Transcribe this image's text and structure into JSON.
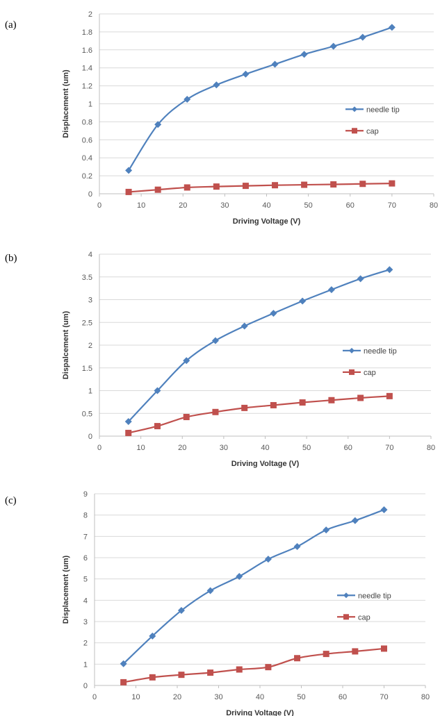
{
  "chart_data": [
    {
      "panel_label": "(a)",
      "type": "line",
      "title": "",
      "xlabel": "Driving Voltage (V)",
      "ylabel": "Displacement (um)",
      "xlim": [
        0,
        80
      ],
      "xticks": [
        0,
        10,
        20,
        30,
        40,
        50,
        60,
        70,
        80
      ],
      "ylim": [
        0,
        2
      ],
      "yticks": [
        0,
        0.2,
        0.4,
        0.6,
        0.8,
        1,
        1.2,
        1.4,
        1.6,
        1.8,
        2
      ],
      "ytick_labels": [
        "0",
        "0.2",
        "0.4",
        "0.6",
        "0.8",
        "1",
        "1.2",
        "1.4",
        "1.6",
        "1.8",
        "2"
      ],
      "grid": "horizontal",
      "legend_position": "right",
      "x": [
        7,
        14,
        21,
        28,
        35,
        42,
        49,
        56,
        63,
        70
      ],
      "series": [
        {
          "name": "needle tip",
          "color": "#4f81bd",
          "marker": "diamond",
          "values": [
            0.26,
            0.77,
            1.05,
            1.21,
            1.33,
            1.44,
            1.55,
            1.64,
            1.74,
            1.85
          ]
        },
        {
          "name": "cap",
          "color": "#c0504d",
          "marker": "square",
          "values": [
            0.02,
            0.045,
            0.07,
            0.08,
            0.088,
            0.095,
            0.1,
            0.104,
            0.11,
            0.115
          ]
        }
      ]
    },
    {
      "panel_label": "(b)",
      "type": "line",
      "title": "",
      "xlabel": "Driving Voltage (V)",
      "ylabel": "Dispalcement (um)",
      "xlim": [
        0,
        80
      ],
      "xticks": [
        0,
        10,
        20,
        30,
        40,
        50,
        60,
        70,
        80
      ],
      "ylim": [
        0,
        4
      ],
      "yticks": [
        0,
        0.5,
        1,
        1.5,
        2,
        2.5,
        3,
        3.5,
        4
      ],
      "ytick_labels": [
        "0",
        "0.5",
        "1",
        "1.5",
        "2",
        "2.5",
        "3",
        "3.5",
        "4"
      ],
      "grid": "horizontal",
      "legend_position": "right",
      "x": [
        7,
        14,
        21,
        28,
        35,
        42,
        49,
        56,
        63,
        70
      ],
      "series": [
        {
          "name": "needle tip",
          "color": "#4f81bd",
          "marker": "diamond",
          "values": [
            0.32,
            1.0,
            1.66,
            2.1,
            2.42,
            2.7,
            2.97,
            3.22,
            3.46,
            3.66
          ]
        },
        {
          "name": "cap",
          "color": "#c0504d",
          "marker": "square",
          "values": [
            0.07,
            0.22,
            0.42,
            0.53,
            0.62,
            0.68,
            0.74,
            0.79,
            0.84,
            0.88
          ]
        }
      ]
    },
    {
      "panel_label": "(c)",
      "type": "line",
      "title": "",
      "xlabel": "Driving Voltage (V)",
      "ylabel": "Displacement (um)",
      "xlim": [
        0,
        80
      ],
      "xticks": [
        0,
        10,
        20,
        30,
        40,
        50,
        60,
        70,
        80
      ],
      "ylim": [
        0,
        9
      ],
      "yticks": [
        0,
        1,
        2,
        3,
        4,
        5,
        6,
        7,
        8,
        9
      ],
      "ytick_labels": [
        "0",
        "1",
        "2",
        "3",
        "4",
        "5",
        "6",
        "7",
        "8",
        "9"
      ],
      "grid": "horizontal",
      "legend_position": "right",
      "x": [
        7,
        14,
        21,
        28,
        35,
        42,
        49,
        56,
        63,
        70
      ],
      "series": [
        {
          "name": "needle tip",
          "color": "#4f81bd",
          "marker": "diamond",
          "values": [
            1.02,
            2.32,
            3.52,
            4.45,
            5.12,
            5.93,
            6.52,
            7.3,
            7.74,
            8.25
          ]
        },
        {
          "name": "cap",
          "color": "#c0504d",
          "marker": "square",
          "values": [
            0.15,
            0.38,
            0.5,
            0.6,
            0.75,
            0.86,
            1.28,
            1.48,
            1.6,
            1.73
          ]
        }
      ]
    }
  ]
}
